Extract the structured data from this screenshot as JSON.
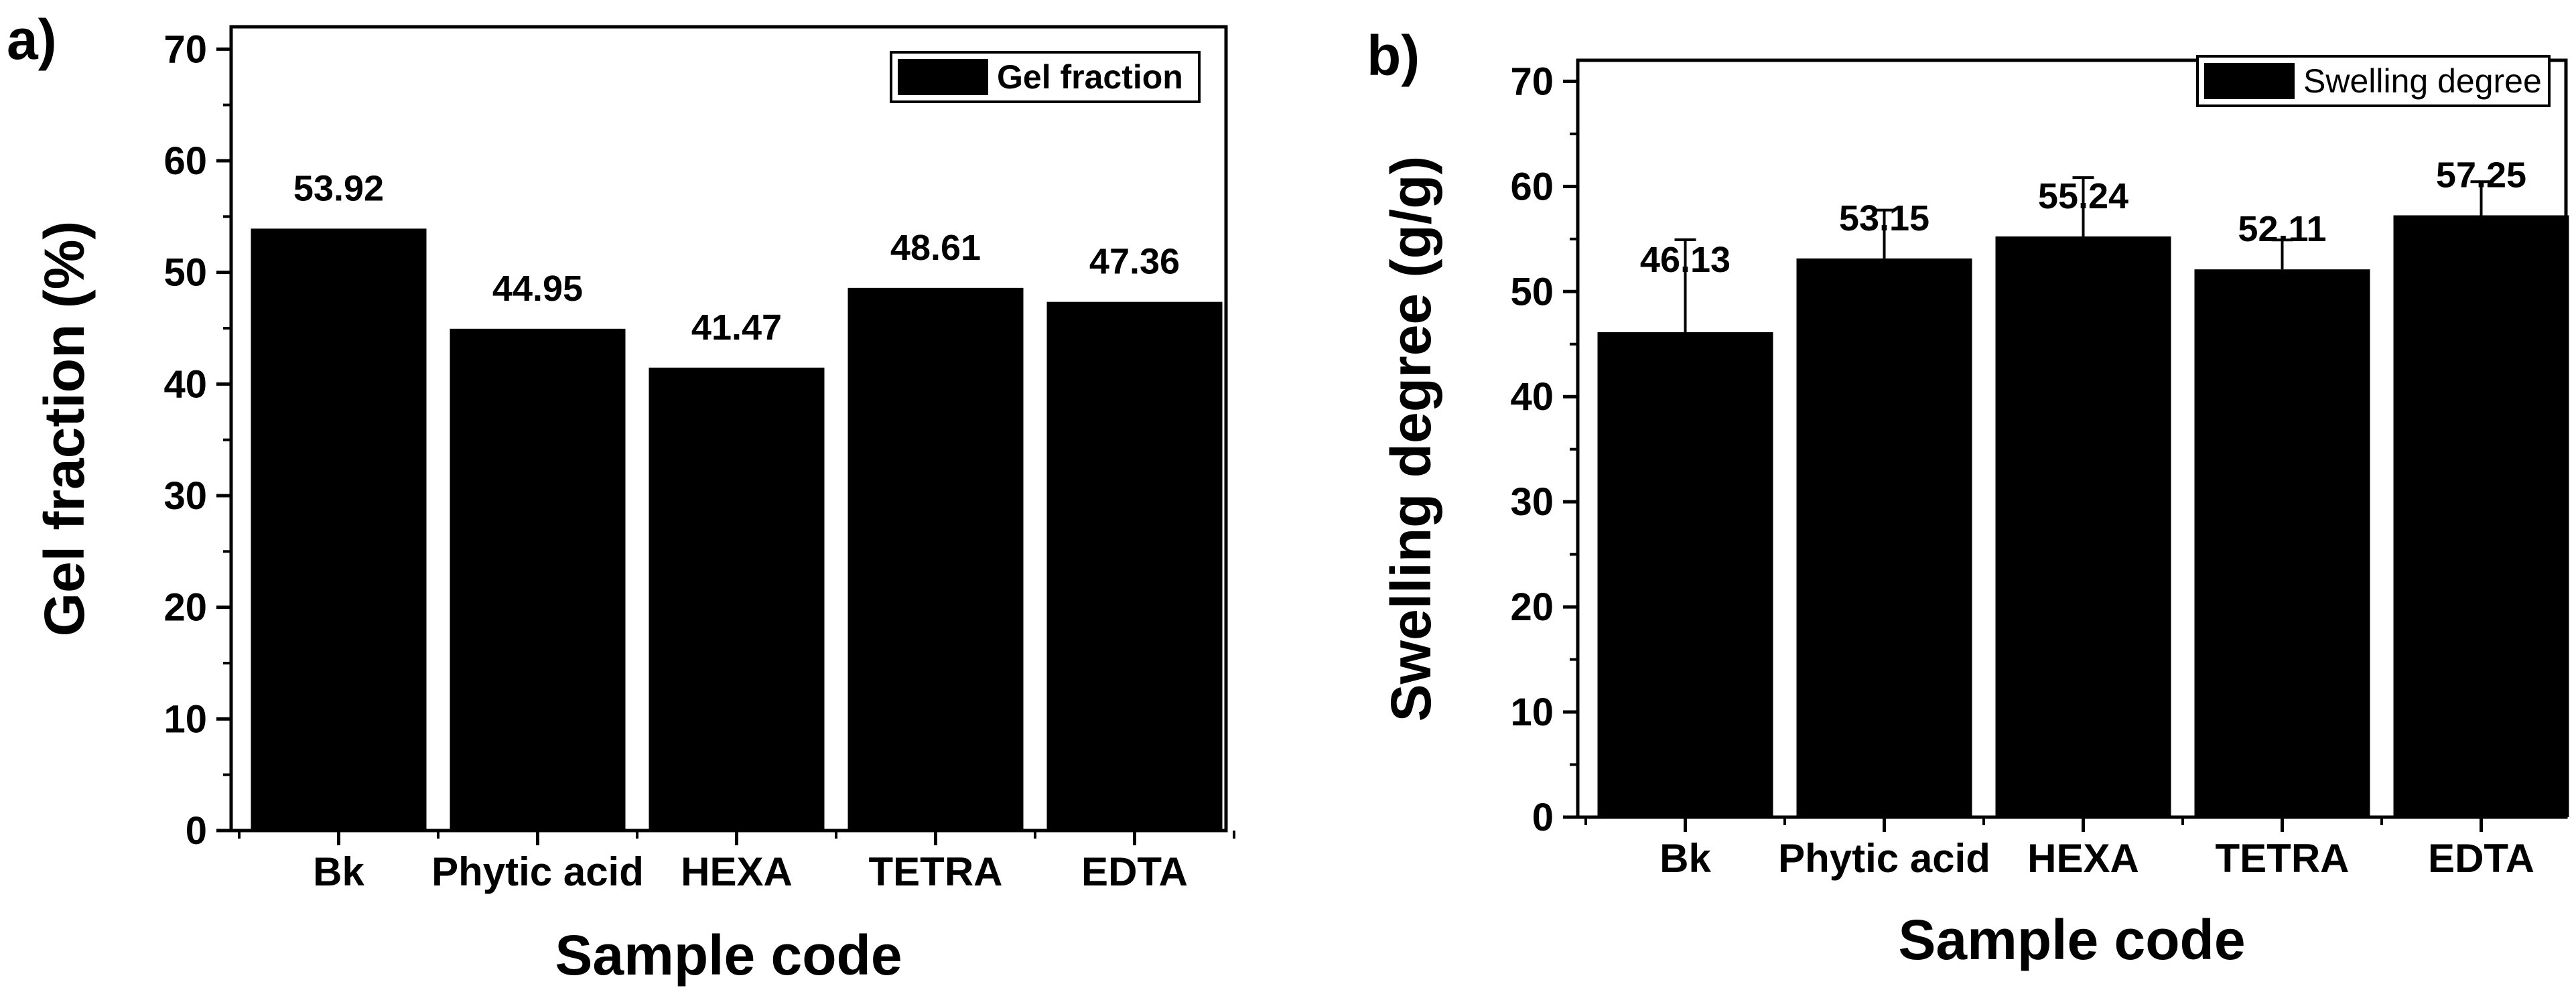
{
  "chart_data": [
    {
      "type": "bar",
      "panel_label": "a)",
      "categories": [
        "Bk",
        "Phytic acid",
        "HEXA",
        "TETRA",
        "EDTA"
      ],
      "values": [
        53.92,
        44.95,
        41.47,
        48.61,
        47.36
      ],
      "value_labels": [
        "53.92",
        "44.95",
        "41.47",
        "48.61",
        "47.36"
      ],
      "errors": null,
      "ylim": [
        0,
        72
      ],
      "yticks": [
        0,
        10,
        20,
        30,
        40,
        50,
        60,
        70
      ],
      "ytick_labels": [
        "0",
        "10",
        "20",
        "30",
        "40",
        "50",
        "60",
        "70"
      ],
      "xlabel": "Sample code",
      "ylabel": "Gel fraction (%)",
      "legend": "Gel fraction",
      "legend_position": "top-right",
      "color": "#000000"
    },
    {
      "type": "bar",
      "panel_label": "b)",
      "categories": [
        "Bk",
        "Phytic acid",
        "HEXA",
        "TETRA",
        "EDTA"
      ],
      "values": [
        46.13,
        53.15,
        55.24,
        52.11,
        57.25
      ],
      "value_labels": [
        "46.13",
        "53.15",
        "55.24",
        "52.11",
        "57.25"
      ],
      "errors": [
        8.8,
        4.6,
        5.6,
        2.8,
        3.2
      ],
      "ylim": [
        0,
        72
      ],
      "yticks": [
        0,
        10,
        20,
        30,
        40,
        50,
        60,
        70
      ],
      "ytick_labels": [
        "0",
        "10",
        "20",
        "30",
        "40",
        "50",
        "60",
        "70"
      ],
      "xlabel": "Sample code",
      "ylabel": "Swelling degree (g/g)",
      "legend": "Swelling degree",
      "legend_position": "top-right",
      "color": "#000000"
    }
  ]
}
